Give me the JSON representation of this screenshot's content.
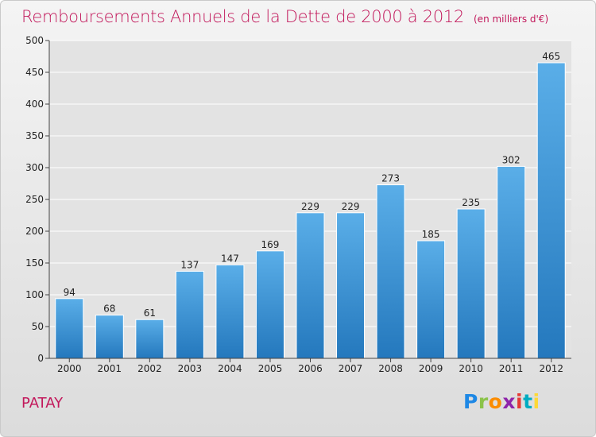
{
  "title": "Remboursements Annuels de la Dette de 2000 à 2012",
  "unit_note": "(en milliers d'€)",
  "town": "PATAY",
  "brand": {
    "name": "Proxiti",
    "letters": [
      "P",
      "r",
      "o",
      "x",
      "i",
      "t",
      "i"
    ],
    "letter_colors": [
      "#1e88e5",
      "#8bc34a",
      "#fb8c00",
      "#8e24aa",
      "#e53935",
      "#00acc1",
      "#fdd835"
    ]
  },
  "colors": {
    "title": "#c2185b",
    "bar_top": "#5aaee8",
    "bar_bottom": "#2478bd",
    "grid": "#ffffff",
    "axis": "#444444"
  },
  "chart_data": {
    "type": "bar",
    "categories": [
      "2000",
      "2001",
      "2002",
      "2003",
      "2004",
      "2005",
      "2006",
      "2007",
      "2008",
      "2009",
      "2010",
      "2011",
      "2012"
    ],
    "values": [
      94,
      68,
      61,
      137,
      147,
      169,
      229,
      229,
      273,
      185,
      235,
      302,
      465
    ],
    "data_labels": [
      "94",
      "68",
      "61",
      "137",
      "147",
      "169",
      "229",
      "229",
      "273",
      "185",
      "235",
      "302",
      "465"
    ],
    "ylim": [
      0,
      500
    ],
    "yticks": [
      0,
      50,
      100,
      150,
      200,
      250,
      300,
      350,
      400,
      450,
      500
    ],
    "ytick_labels": [
      "0",
      "50",
      "100",
      "150",
      "200",
      "250",
      "300",
      "350",
      "400",
      "450",
      "500"
    ],
    "grid": true,
    "title": "Remboursements Annuels de la Dette de 2000 à 2012",
    "xlabel": "",
    "ylabel": ""
  }
}
